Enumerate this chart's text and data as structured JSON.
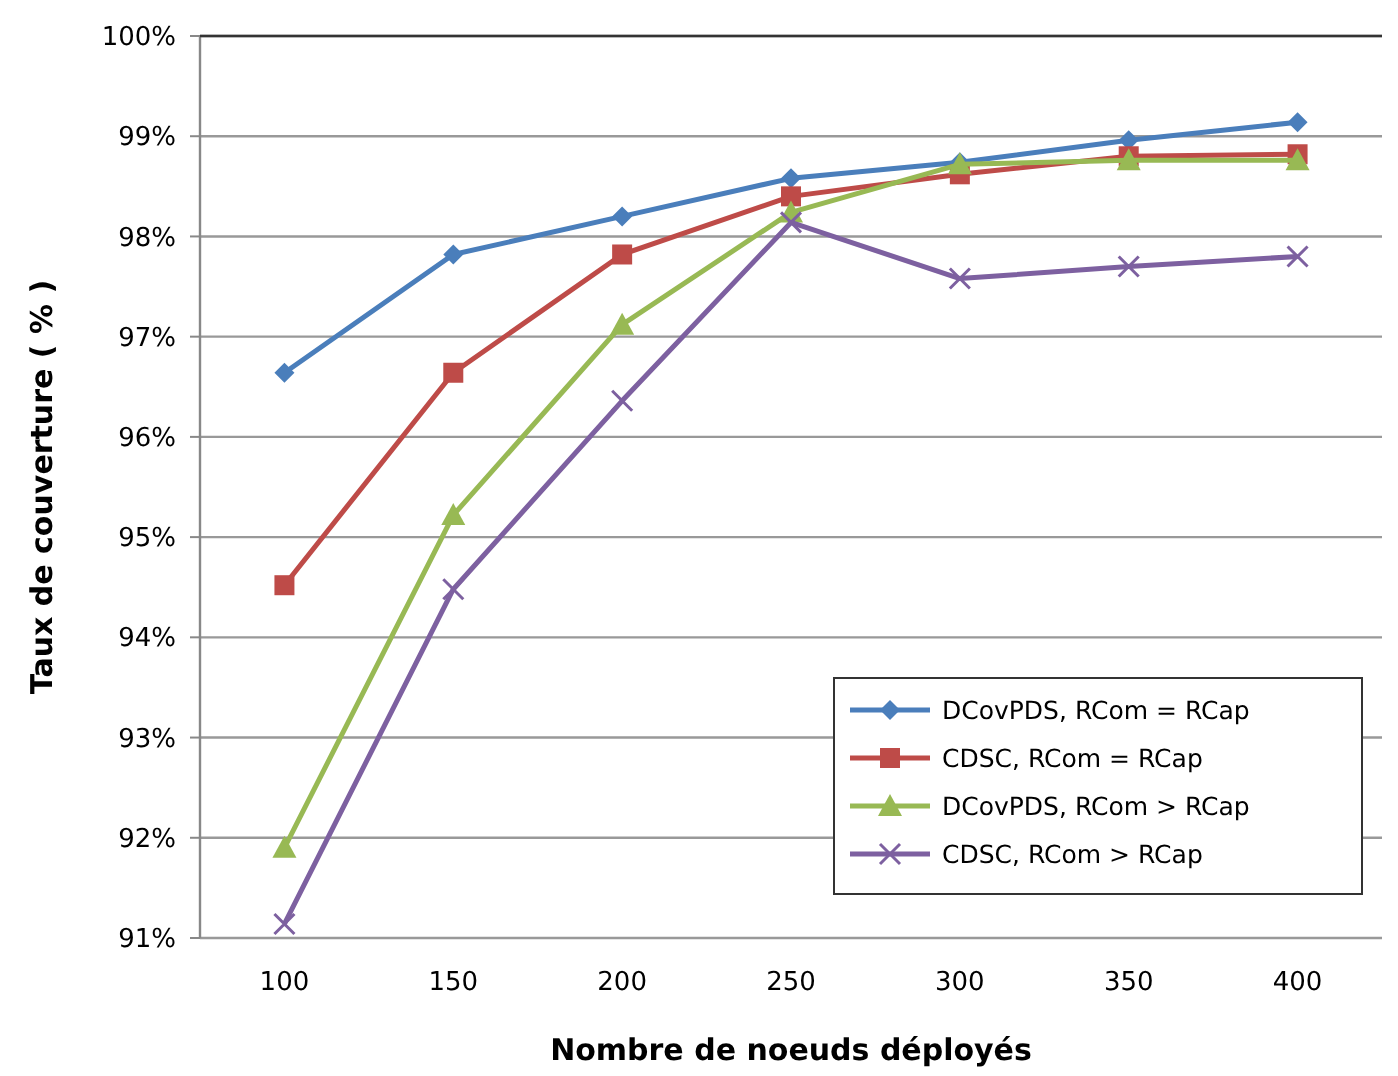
{
  "chart_data": {
    "type": "line",
    "xlabel": "Nombre de noeuds déployés",
    "ylabel": "Taux de couverture ( % )",
    "categories": [
      "100",
      "150",
      "200",
      "250",
      "300",
      "350",
      "400"
    ],
    "series": [
      {
        "name": "DCovPDS, RCom = RCap",
        "color": "#4a7ebb",
        "marker": "diamond",
        "values": [
          96.64,
          97.82,
          98.2,
          98.58,
          98.74,
          98.96,
          99.14
        ]
      },
      {
        "name": "CDSC, RCom = RCap",
        "color": "#be4b48",
        "marker": "square",
        "values": [
          94.52,
          96.64,
          97.82,
          98.4,
          98.62,
          98.8,
          98.82
        ]
      },
      {
        "name": "DCovPDS, RCom > RCap",
        "color": "#98b954",
        "marker": "triangle",
        "values": [
          91.9,
          95.22,
          97.12,
          98.24,
          98.72,
          98.76,
          98.76
        ]
      },
      {
        "name": "CDSC, RCom > RCap",
        "color": "#7d60a0",
        "marker": "cross",
        "values": [
          91.14,
          94.48,
          96.36,
          98.14,
          97.58,
          97.7,
          97.8
        ]
      }
    ],
    "ylim": [
      91,
      100
    ],
    "yticks": [
      {
        "value": 91,
        "label": "91%"
      },
      {
        "value": 92,
        "label": "92%"
      },
      {
        "value": 93,
        "label": "93%"
      },
      {
        "value": 94,
        "label": "94%"
      },
      {
        "value": 95,
        "label": "95%"
      },
      {
        "value": 96,
        "label": "96%"
      },
      {
        "value": 97,
        "label": "97%"
      },
      {
        "value": 98,
        "label": "98%"
      },
      {
        "value": 99,
        "label": "99%"
      },
      {
        "value": 100,
        "label": "100%"
      }
    ],
    "grid": "y",
    "legend": "bottom right",
    "line_style": "solid"
  }
}
